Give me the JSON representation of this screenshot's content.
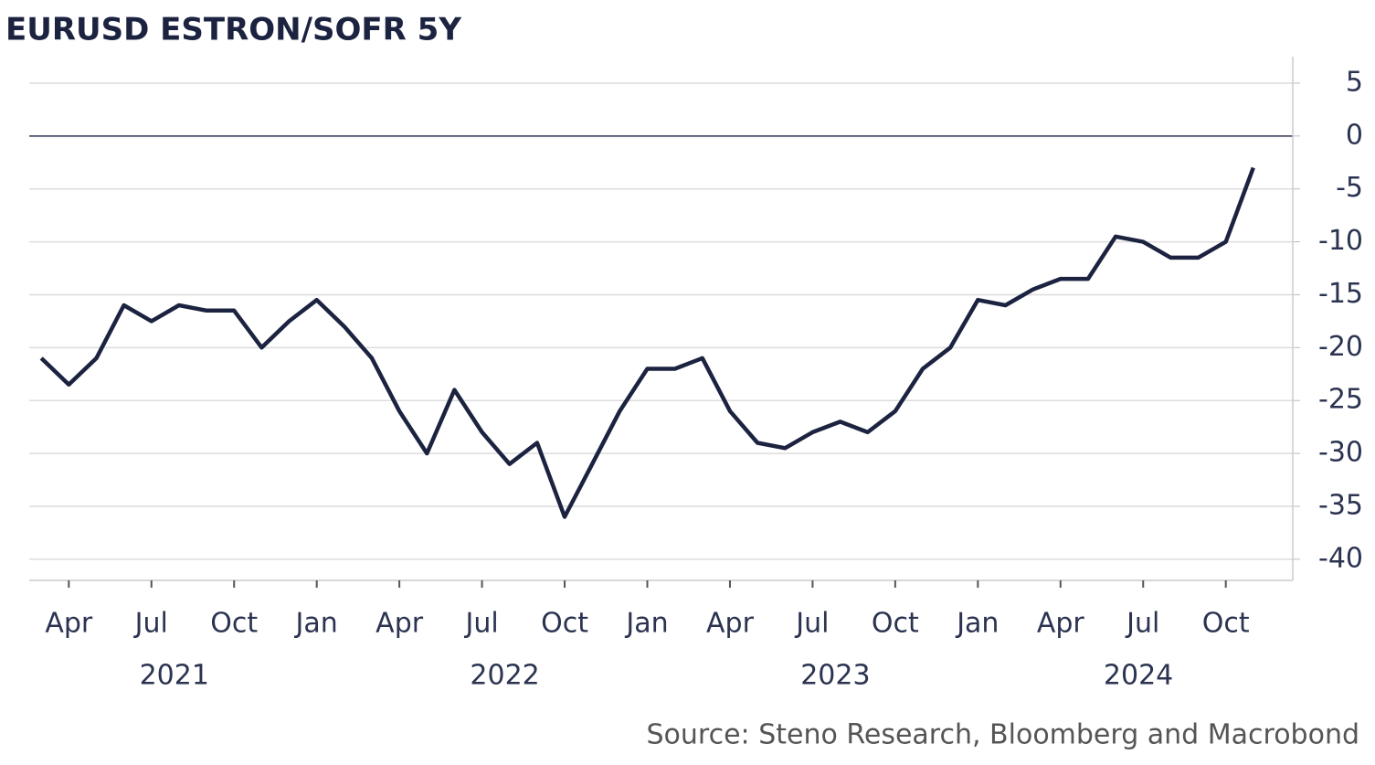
{
  "chart_data": {
    "type": "line",
    "title": "EURUSD  ESTRON/SOFR 5Y",
    "source": "Source: Steno Research, Bloomberg and Macrobond",
    "x": [
      "2021-03",
      "2021-04",
      "2021-05",
      "2021-06",
      "2021-07",
      "2021-08",
      "2021-09",
      "2021-10",
      "2021-11",
      "2021-12",
      "2022-01",
      "2022-02",
      "2022-03",
      "2022-04",
      "2022-05",
      "2022-06",
      "2022-07",
      "2022-08",
      "2022-09",
      "2022-10",
      "2022-11",
      "2022-12",
      "2023-01",
      "2023-02",
      "2023-03",
      "2023-04",
      "2023-05",
      "2023-06",
      "2023-07",
      "2023-08",
      "2023-09",
      "2023-10",
      "2023-11",
      "2023-12",
      "2024-01",
      "2024-02",
      "2024-03",
      "2024-04",
      "2024-05",
      "2024-06",
      "2024-07",
      "2024-08",
      "2024-09",
      "2024-10",
      "2024-11"
    ],
    "series": [
      {
        "name": "EURUSD ESTRON/SOFR 5Y",
        "color": "#1c2340",
        "values": [
          -21,
          -23.5,
          -21,
          -16,
          -17.5,
          -16,
          -16.5,
          -16.5,
          -20,
          -17.5,
          -15.5,
          -18,
          -21,
          -26,
          -30,
          -24,
          -28,
          -31,
          -29,
          -36,
          -31,
          -26,
          -22,
          -22,
          -21,
          -26,
          -29,
          -29.5,
          -28,
          -27,
          -28,
          -26,
          -22,
          -20,
          -15.5,
          -16,
          -14.5,
          -13.5,
          -13.5,
          -9.5,
          -10,
          -11.5,
          -11.5,
          -10,
          -3
        ]
      }
    ],
    "xlim": [
      "2021-02",
      "2024-12"
    ],
    "xticks": [
      {
        "value": "2021-04",
        "label": "Apr"
      },
      {
        "value": "2021-07",
        "label": "Jul"
      },
      {
        "value": "2021-10",
        "label": "Oct"
      },
      {
        "value": "2022-01",
        "label": "Jan"
      },
      {
        "value": "2022-04",
        "label": "Apr"
      },
      {
        "value": "2022-07",
        "label": "Jul"
      },
      {
        "value": "2022-10",
        "label": "Oct"
      },
      {
        "value": "2023-01",
        "label": "Jan"
      },
      {
        "value": "2023-04",
        "label": "Apr"
      },
      {
        "value": "2023-07",
        "label": "Jul"
      },
      {
        "value": "2023-10",
        "label": "Oct"
      },
      {
        "value": "2024-01",
        "label": "Jan"
      },
      {
        "value": "2024-04",
        "label": "Apr"
      },
      {
        "value": "2024-07",
        "label": "Jul"
      },
      {
        "value": "2024-10",
        "label": "Oct"
      }
    ],
    "year_ticks": [
      {
        "value": "2021-07",
        "label": "2021"
      },
      {
        "value": "2022-07",
        "label": "2022"
      },
      {
        "value": "2023-07",
        "label": "2023"
      },
      {
        "value": "2024-06",
        "label": "2024"
      }
    ],
    "ylim": [
      -42,
      7.5
    ],
    "yticks": [
      5,
      0,
      -5,
      -10,
      -15,
      -20,
      -25,
      -30,
      -35,
      -40
    ],
    "grid": true
  }
}
